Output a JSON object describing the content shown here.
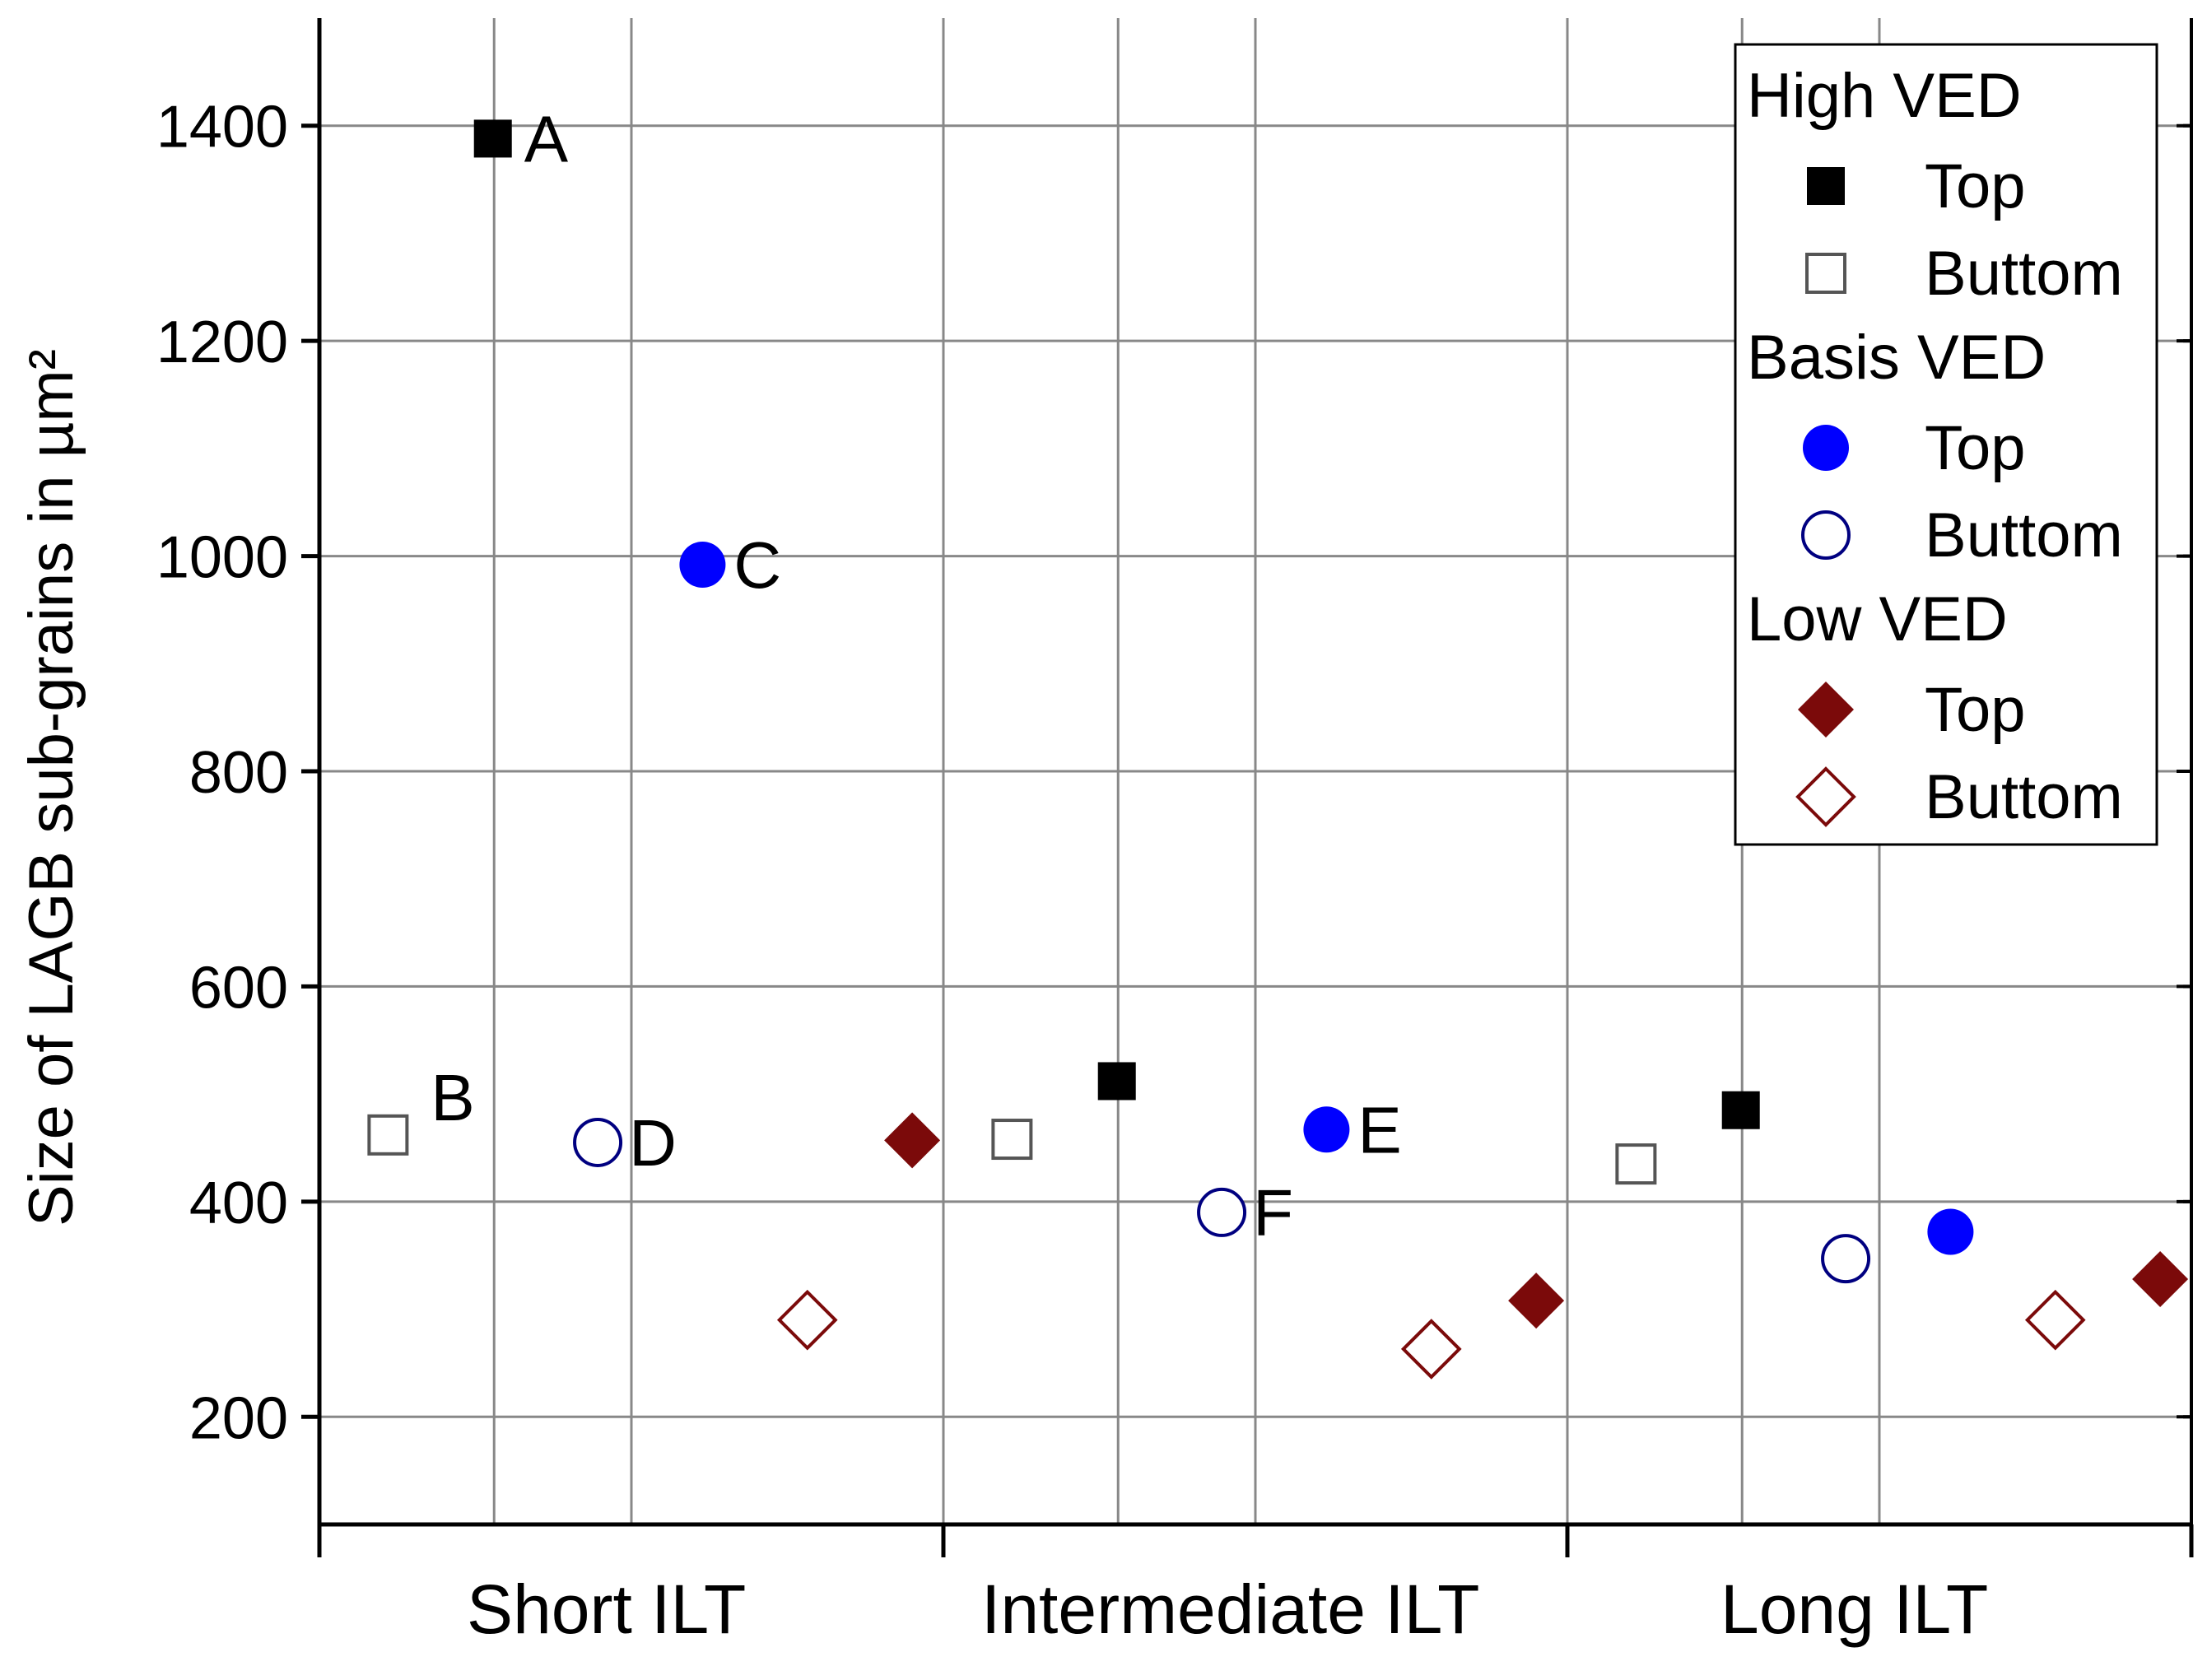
{
  "chart_data": {
    "type": "scatter",
    "title": "",
    "xlabel": "",
    "ylabel": "Size of LAGB sub-grains in µm²",
    "categories": [
      "Short ILT",
      "Intermediate ILT",
      "Long ILT"
    ],
    "ylim": [
      100,
      1500
    ],
    "yticks": [
      200,
      400,
      600,
      800,
      1000,
      1200,
      1400
    ],
    "grid": true,
    "legend_position": "top-right",
    "legend_groups": [
      {
        "title": "High VED",
        "entries": [
          "Top",
          "Buttom"
        ]
      },
      {
        "title": "Basis VED",
        "entries": [
          "Top",
          "Buttom"
        ]
      },
      {
        "title": "Low VED",
        "entries": [
          "Top",
          "Buttom"
        ]
      }
    ],
    "series": [
      {
        "group": "High VED",
        "name": "Top",
        "marker": "square-filled",
        "color": "#000000",
        "values": [
          1388,
          512,
          485
        ],
        "labels": [
          "A",
          "",
          ""
        ]
      },
      {
        "group": "High VED",
        "name": "Buttom",
        "marker": "square-open",
        "color": "#555555",
        "values": [
          462,
          458,
          435
        ],
        "labels": [
          "B",
          "",
          ""
        ]
      },
      {
        "group": "Basis VED",
        "name": "Top",
        "marker": "circle-filled",
        "color": "#0000ff",
        "values": [
          992,
          467,
          372
        ],
        "labels": [
          "C",
          "E",
          ""
        ]
      },
      {
        "group": "Basis VED",
        "name": "Buttom",
        "marker": "circle-open",
        "color": "#000080",
        "values": [
          455,
          390,
          347
        ],
        "labels": [
          "D",
          "F",
          ""
        ]
      },
      {
        "group": "Low VED",
        "name": "Top",
        "marker": "diamond-filled",
        "color": "#7b0a0a",
        "values": [
          457,
          308,
          328
        ],
        "labels": [
          "",
          "",
          ""
        ]
      },
      {
        "group": "Low VED",
        "name": "Buttom",
        "marker": "diamond-open",
        "color": "#7b0a0a",
        "values": [
          290,
          263,
          290
        ],
        "labels": [
          "",
          "",
          ""
        ]
      }
    ]
  }
}
